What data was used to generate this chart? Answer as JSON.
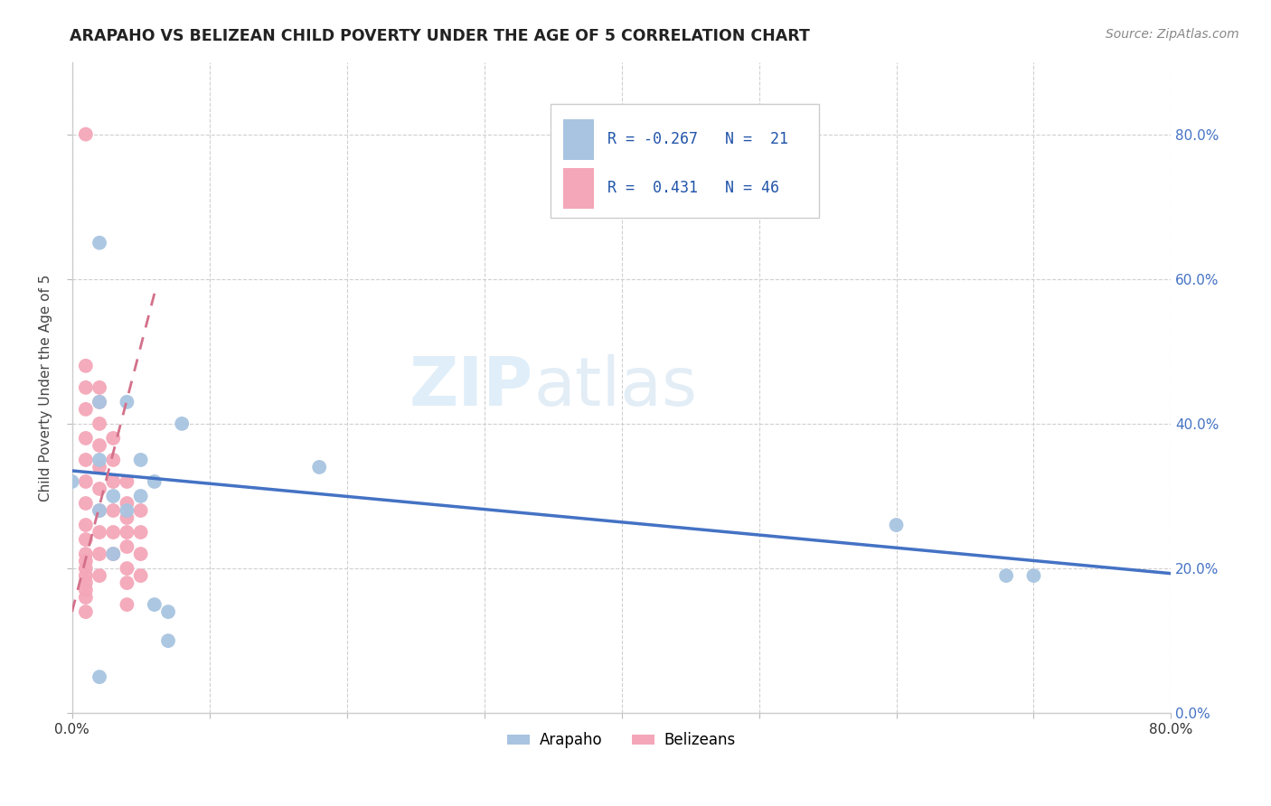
{
  "title": "ARAPAHO VS BELIZEAN CHILD POVERTY UNDER THE AGE OF 5 CORRELATION CHART",
  "source": "Source: ZipAtlas.com",
  "ylabel": "Child Poverty Under the Age of 5",
  "xlim": [
    0.0,
    0.8
  ],
  "ylim": [
    0.0,
    0.9
  ],
  "arapaho_color": "#a8c4e0",
  "belizean_color": "#f4a7b9",
  "arapaho_line_color": "#4472c4",
  "belizean_line_color": "#d4708a",
  "watermark_zip": "ZIP",
  "watermark_atlas": "atlas",
  "arapaho_x": [
    0.0,
    0.02,
    0.02,
    0.02,
    0.03,
    0.03,
    0.04,
    0.04,
    0.05,
    0.05,
    0.06,
    0.06,
    0.07,
    0.07,
    0.08,
    0.18,
    0.6,
    0.68,
    0.7,
    0.02,
    0.02
  ],
  "arapaho_y": [
    0.32,
    0.43,
    0.35,
    0.28,
    0.3,
    0.22,
    0.43,
    0.28,
    0.35,
    0.3,
    0.32,
    0.15,
    0.14,
    0.1,
    0.4,
    0.34,
    0.26,
    0.19,
    0.19,
    0.65,
    0.05
  ],
  "belizean_x": [
    0.01,
    0.01,
    0.01,
    0.01,
    0.01,
    0.01,
    0.01,
    0.01,
    0.01,
    0.01,
    0.01,
    0.01,
    0.01,
    0.01,
    0.01,
    0.01,
    0.01,
    0.01,
    0.02,
    0.02,
    0.02,
    0.02,
    0.02,
    0.02,
    0.02,
    0.02,
    0.02,
    0.02,
    0.03,
    0.03,
    0.03,
    0.03,
    0.03,
    0.03,
    0.04,
    0.04,
    0.04,
    0.04,
    0.04,
    0.04,
    0.04,
    0.04,
    0.05,
    0.05,
    0.05,
    0.05
  ],
  "belizean_y": [
    0.8,
    0.48,
    0.45,
    0.42,
    0.38,
    0.35,
    0.32,
    0.29,
    0.26,
    0.24,
    0.22,
    0.21,
    0.2,
    0.19,
    0.18,
    0.17,
    0.16,
    0.14,
    0.45,
    0.43,
    0.4,
    0.37,
    0.34,
    0.31,
    0.28,
    0.25,
    0.22,
    0.19,
    0.38,
    0.35,
    0.32,
    0.28,
    0.25,
    0.22,
    0.32,
    0.29,
    0.27,
    0.25,
    0.23,
    0.2,
    0.18,
    0.15,
    0.28,
    0.25,
    0.22,
    0.19
  ],
  "arapaho_trend_x": [
    0.0,
    0.8
  ],
  "arapaho_trend_y": [
    0.335,
    0.193
  ],
  "belizean_trend_x": [
    0.0,
    0.06
  ],
  "belizean_trend_y": [
    0.14,
    0.58
  ],
  "background_color": "#ffffff",
  "grid_color": "#d0d0d0"
}
